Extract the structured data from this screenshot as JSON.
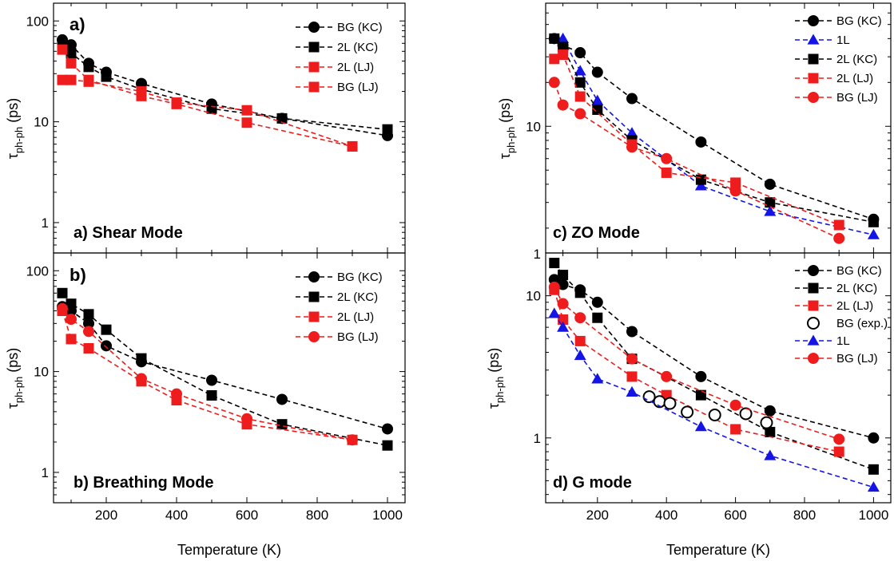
{
  "figure": {
    "x_label": "Temperature (K)",
    "y_label_main": "τ",
    "y_label_sub": "ph-ph",
    "y_label_unit": " (ps)"
  },
  "colors": {
    "black": "#000000",
    "red": "#ee1c1c",
    "blue": "#1414e6"
  },
  "chart_data": [
    {
      "type": "line",
      "panel": "a",
      "corner_label": "a)",
      "title": "a) Shear Mode",
      "x_scale": "linear",
      "y_scale": "log",
      "xlim": [
        50,
        1050
      ],
      "ylim": [
        0.5,
        150
      ],
      "x_ticks": [
        200,
        400,
        600,
        800,
        1000
      ],
      "y_ticks": [
        1,
        10,
        100
      ],
      "legend_position": "top-right",
      "series": [
        {
          "name": "BG (KC)",
          "color": "black",
          "marker": "circle",
          "line": "dashed",
          "x": [
            75,
            100,
            150,
            200,
            300,
            500,
            700,
            1000
          ],
          "y": [
            65,
            58,
            38,
            31,
            24,
            15,
            10.8,
            7.3
          ]
        },
        {
          "name": "2L (KC)",
          "color": "black",
          "marker": "square",
          "line": "dashed",
          "x": [
            75,
            100,
            150,
            200,
            300,
            500,
            700,
            1000
          ],
          "y": [
            55,
            48,
            35,
            28,
            21,
            13.5,
            10.8,
            8.4
          ]
        },
        {
          "name": "2L (LJ)",
          "color": "red",
          "marker": "square",
          "line": "dashed",
          "x": [
            75,
            100,
            150,
            300,
            400,
            600,
            900
          ],
          "y": [
            52,
            38,
            26,
            18,
            15,
            9.8,
            5.7
          ]
        },
        {
          "name": "BG (LJ)",
          "color": "red",
          "marker": "square",
          "line": "dashed",
          "x": [
            75,
            100,
            150,
            300,
            400,
            600,
            900
          ],
          "y": [
            26,
            26,
            25,
            20,
            15.5,
            13,
            5.7
          ]
        }
      ]
    },
    {
      "type": "line",
      "panel": "b",
      "corner_label": "b)",
      "title": "b) Breathing Mode",
      "x_scale": "linear",
      "y_scale": "log",
      "xlim": [
        50,
        1050
      ],
      "ylim": [
        0.5,
        150
      ],
      "x_ticks": [
        200,
        400,
        600,
        800,
        1000
      ],
      "y_ticks": [
        1,
        10,
        100
      ],
      "legend_position": "top-right",
      "series": [
        {
          "name": "BG (KC)",
          "color": "black",
          "marker": "circle",
          "line": "dashed",
          "x": [
            75,
            100,
            150,
            200,
            300,
            500,
            700,
            1000
          ],
          "y": [
            44,
            40,
            30,
            18,
            12.5,
            8.2,
            5.3,
            2.7
          ]
        },
        {
          "name": "2L (KC)",
          "color": "black",
          "marker": "square",
          "line": "dashed",
          "x": [
            75,
            100,
            150,
            200,
            300,
            500,
            700,
            1000
          ],
          "y": [
            60,
            47,
            37,
            26,
            13.5,
            5.8,
            3.0,
            1.85
          ]
        },
        {
          "name": "2L (LJ)",
          "color": "red",
          "marker": "square",
          "line": "dashed",
          "x": [
            75,
            100,
            150,
            300,
            400,
            600,
            900
          ],
          "y": [
            40,
            21,
            17,
            8.0,
            5.2,
            3.0,
            2.1
          ]
        },
        {
          "name": "BG (LJ)",
          "color": "red",
          "marker": "circle",
          "line": "dashed",
          "x": [
            75,
            100,
            150,
            300,
            400,
            600,
            900
          ],
          "y": [
            42,
            33,
            25,
            8.5,
            6.0,
            3.4,
            2.1
          ]
        }
      ]
    },
    {
      "type": "line",
      "panel": "c",
      "corner_label": "",
      "title": "c) ZO Mode",
      "x_scale": "linear",
      "y_scale": "log",
      "xlim": [
        50,
        1050
      ],
      "ylim": [
        1.35,
        70
      ],
      "x_ticks": [
        200,
        400,
        600,
        800,
        1000
      ],
      "y_ticks": [
        10
      ],
      "legend_position": "top-right",
      "series": [
        {
          "name": "BG (KC)",
          "color": "black",
          "marker": "circle",
          "line": "dashed",
          "x": [
            75,
            100,
            150,
            200,
            300,
            500,
            700,
            1000
          ],
          "y": [
            40,
            36,
            32,
            23.5,
            15.5,
            7.8,
            4.0,
            2.3
          ]
        },
        {
          "name": "1L",
          "color": "blue",
          "marker": "triangle",
          "line": "dashed",
          "x": [
            100,
            150,
            200,
            300,
            500,
            700,
            1000
          ],
          "y": [
            40,
            24,
            15,
            9,
            3.9,
            2.6,
            1.8
          ]
        },
        {
          "name": "2L (KC)",
          "color": "black",
          "marker": "square",
          "line": "dashed",
          "x": [
            75,
            100,
            150,
            200,
            300,
            500,
            700,
            1000
          ],
          "y": [
            40,
            35,
            20,
            13,
            8,
            4.3,
            3.0,
            2.2
          ]
        },
        {
          "name": "2L (LJ)",
          "color": "red",
          "marker": "square",
          "line": "dashed",
          "x": [
            75,
            100,
            150,
            300,
            400,
            600,
            900
          ],
          "y": [
            29,
            31,
            16,
            7.5,
            4.8,
            4.1,
            2.1
          ]
        },
        {
          "name": "BG (LJ)",
          "color": "red",
          "marker": "circle",
          "line": "dashed",
          "x": [
            75,
            100,
            150,
            300,
            400,
            600,
            900
          ],
          "y": [
            20,
            14,
            12.2,
            7.2,
            6,
            3.6,
            1.7
          ]
        }
      ]
    },
    {
      "type": "line",
      "panel": "d",
      "corner_label": "",
      "title": "d) G mode",
      "x_scale": "linear",
      "y_scale": "log",
      "xlim": [
        50,
        1050
      ],
      "ylim": [
        0.35,
        20
      ],
      "x_ticks": [
        200,
        400,
        600,
        800,
        1000
      ],
      "y_ticks": [
        1,
        10
      ],
      "legend_position": "top-right",
      "series": [
        {
          "name": "BG (KC)",
          "color": "black",
          "marker": "circle",
          "line": "dashed",
          "x": [
            75,
            100,
            150,
            200,
            300,
            500,
            700,
            1000
          ],
          "y": [
            13,
            12,
            11,
            9,
            5.6,
            2.7,
            1.55,
            1.0
          ]
        },
        {
          "name": "2L (KC)",
          "color": "black",
          "marker": "square",
          "line": "dashed",
          "x": [
            75,
            100,
            150,
            200,
            300,
            500,
            700,
            1000
          ],
          "y": [
            17,
            14,
            10.5,
            7.0,
            3.6,
            2.0,
            1.1,
            0.6
          ]
        },
        {
          "name": "2L (LJ)",
          "color": "red",
          "marker": "square",
          "line": "dashed",
          "x": [
            75,
            100,
            150,
            300,
            400,
            600,
            900
          ],
          "y": [
            11,
            6.8,
            4.8,
            2.7,
            2.0,
            1.15,
            0.8
          ]
        },
        {
          "name": "BG (exp.)",
          "color": "black",
          "marker": "circle-open",
          "line": "none",
          "x": [
            350,
            380,
            410,
            460,
            540,
            630,
            690
          ],
          "y": [
            1.95,
            1.8,
            1.75,
            1.52,
            1.45,
            1.48,
            1.28
          ]
        },
        {
          "name": "1L",
          "color": "blue",
          "marker": "triangle",
          "line": "dashed",
          "x": [
            75,
            100,
            150,
            200,
            300,
            500,
            700,
            1000
          ],
          "y": [
            7.5,
            6.0,
            3.8,
            2.6,
            2.1,
            1.2,
            0.75,
            0.45
          ]
        },
        {
          "name": "BG (LJ)",
          "color": "red",
          "marker": "circle",
          "line": "dashed",
          "x": [
            75,
            100,
            150,
            300,
            400,
            600,
            900
          ],
          "y": [
            11.5,
            8.8,
            7.0,
            3.6,
            2.7,
            1.7,
            0.98
          ]
        }
      ]
    }
  ]
}
